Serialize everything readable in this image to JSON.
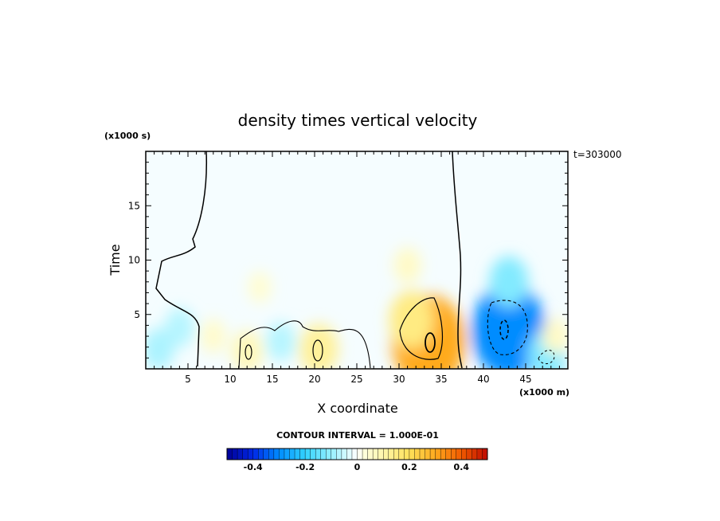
{
  "chart_data": {
    "type": "heatmap",
    "title": "density times vertical velocity",
    "xlabel": "X coordinate",
    "ylabel": "Time",
    "x_unit": "(x1000 m)",
    "y_unit": "(x1000 s)",
    "time_stamp": "t=303000",
    "contour_interval_label": "CONTOUR INTERVAL = 1.000E-01",
    "xlim": [
      0,
      50
    ],
    "ylim": [
      0,
      20
    ],
    "x_ticks": [
      5,
      10,
      15,
      20,
      25,
      30,
      35,
      40,
      45
    ],
    "x_tick_labels": [
      "5",
      "10",
      "15",
      "20",
      "25",
      "30",
      "35",
      "40",
      "45"
    ],
    "y_ticks": [
      5,
      10,
      15
    ],
    "y_tick_labels": [
      "5",
      "10",
      "15"
    ],
    "colorbar": {
      "range": [
        -0.5,
        0.5
      ],
      "ticks": [
        -0.4,
        -0.2,
        0,
        0.2,
        0.4
      ],
      "tick_labels": [
        "-0.4",
        "-0.2",
        "0",
        "0.2",
        "0.4"
      ]
    },
    "features": [
      {
        "x": 33.5,
        "y": 2.5,
        "value": 0.3
      },
      {
        "x": 31.5,
        "y": 4.5,
        "value": 0.15
      },
      {
        "x": 31.0,
        "y": 9.5,
        "value": 0.06
      },
      {
        "x": 43.0,
        "y": 3.5,
        "value": -0.3
      },
      {
        "x": 43.0,
        "y": 8.0,
        "value": -0.12
      },
      {
        "x": 20.5,
        "y": 1.8,
        "value": 0.12
      },
      {
        "x": 12.0,
        "y": 1.6,
        "value": 0.08
      },
      {
        "x": 16.0,
        "y": 2.5,
        "value": -0.07
      },
      {
        "x": 4.0,
        "y": 3.8,
        "value": -0.07
      },
      {
        "x": 1.5,
        "y": 1.8,
        "value": -0.08
      },
      {
        "x": 47.5,
        "y": 1.2,
        "value": -0.12
      },
      {
        "x": 48.5,
        "y": 3.0,
        "value": 0.06
      },
      {
        "x": 13.5,
        "y": 7.5,
        "value": 0.04
      },
      {
        "x": 8.0,
        "y": 3.0,
        "value": 0.05
      }
    ],
    "background_value": 0.02
  }
}
